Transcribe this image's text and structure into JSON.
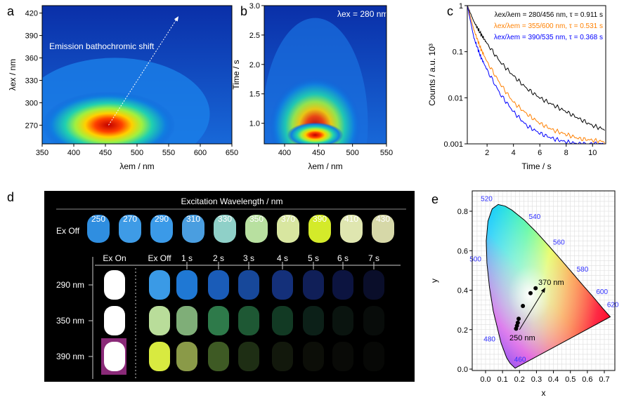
{
  "panel_letters": {
    "a": "a",
    "b": "b",
    "c": "c",
    "d": "d",
    "e": "e"
  },
  "chart_data": [
    {
      "panel": "a",
      "type": "heatmap",
      "xlabel": "λem / nm",
      "ylabel": "λex / nm",
      "xlim": [
        350,
        650
      ],
      "ylim": [
        245,
        430
      ],
      "xticks": [
        "350",
        "400",
        "450",
        "500",
        "550",
        "600",
        "650"
      ],
      "yticks": [
        "270",
        "300",
        "330",
        "360",
        "390",
        "420"
      ],
      "annotation": "Emission bathochromic shift",
      "peak": {
        "x": 455,
        "y": 270
      },
      "arrow": {
        "from": [
          455,
          270
        ],
        "to": [
          565,
          415
        ]
      }
    },
    {
      "panel": "b",
      "type": "heatmap",
      "xlabel": "λem / nm",
      "ylabel": "Time / s",
      "xlim": [
        370,
        550
      ],
      "ylim": [
        0.65,
        3.0
      ],
      "xticks": [
        "400",
        "450",
        "500",
        "550"
      ],
      "yticks": [
        "1.0",
        "1.5",
        "2.0",
        "2.5",
        "3.0"
      ],
      "annotation": "λex = 280 nm",
      "peak": {
        "x": 445,
        "y": 0.8
      }
    },
    {
      "panel": "c",
      "type": "line",
      "xlabel": "Time / s",
      "ylabel": "Counts / a.u. 10³",
      "xlim": [
        0.5,
        11
      ],
      "ylim": [
        0.001,
        1
      ],
      "yscale": "log",
      "xticks": [
        "2",
        "4",
        "6",
        "8",
        "10"
      ],
      "yticks": [
        "0.001",
        "0.01",
        "0.1",
        "1"
      ],
      "series": [
        {
          "name": "λex/λem = 280/456 nm, τ = 0.911 s",
          "color": "#000000",
          "x": [
            0.5,
            1,
            1.5,
            2,
            3,
            4,
            5,
            6,
            7,
            8,
            9,
            10,
            11
          ],
          "y": [
            1,
            0.45,
            0.25,
            0.15,
            0.06,
            0.03,
            0.016,
            0.01,
            0.007,
            0.005,
            0.0035,
            0.0025,
            0.002
          ]
        },
        {
          "name": "λex/λem = 355/600 nm, τ = 0.531 s",
          "color": "#ff8000",
          "x": [
            0.5,
            1,
            1.5,
            2,
            3,
            4,
            5,
            6,
            7,
            8,
            9,
            10,
            11
          ],
          "y": [
            1,
            0.3,
            0.12,
            0.06,
            0.02,
            0.008,
            0.0045,
            0.0028,
            0.002,
            0.0016,
            0.0013,
            0.0012,
            0.0011
          ]
        },
        {
          "name": "λex/λem = 390/535 nm, τ = 0.368 s",
          "color": "#0000ff",
          "x": [
            0.5,
            1,
            1.5,
            2,
            3,
            4,
            5,
            6,
            7,
            8,
            9,
            10,
            11
          ],
          "y": [
            1,
            0.2,
            0.08,
            0.04,
            0.012,
            0.005,
            0.0025,
            0.0017,
            0.0013,
            0.0011,
            0.001,
            0.001,
            0.001
          ]
        }
      ]
    },
    {
      "panel": "e",
      "type": "scatter",
      "xlabel": "x",
      "ylabel": "y",
      "xlim": [
        -0.1,
        0.75
      ],
      "ylim": [
        0,
        0.9
      ],
      "xticks": [
        "0.0",
        "0.1",
        "0.2",
        "0.3",
        "0.4",
        "0.5",
        "0.6",
        "0.7"
      ],
      "yticks": [
        "0.0",
        "0.2",
        "0.4",
        "0.6",
        "0.8"
      ],
      "locus_labels": [
        {
          "nm": "460",
          "x": 0.144,
          "y": 0.03
        },
        {
          "nm": "480",
          "x": 0.091,
          "y": 0.133
        },
        {
          "nm": "500",
          "x": 0.008,
          "y": 0.538
        },
        {
          "nm": "520",
          "x": 0.074,
          "y": 0.834
        },
        {
          "nm": "540",
          "x": 0.23,
          "y": 0.754
        },
        {
          "nm": "560",
          "x": 0.373,
          "y": 0.624
        },
        {
          "nm": "580",
          "x": 0.512,
          "y": 0.487
        },
        {
          "nm": "600",
          "x": 0.627,
          "y": 0.373
        },
        {
          "nm": "620",
          "x": 0.691,
          "y": 0.308
        }
      ],
      "points": {
        "x": [
          0.18,
          0.185,
          0.19,
          0.195,
          0.22,
          0.265,
          0.295
        ],
        "y": [
          0.205,
          0.22,
          0.235,
          0.255,
          0.32,
          0.385,
          0.41
        ]
      },
      "annotations": [
        "250 nm",
        "370 nm"
      ]
    }
  ],
  "photo": {
    "title": "Excitation Wavelength / nm",
    "row_label": "Ex Off",
    "wavelengths": [
      "250",
      "270",
      "290",
      "310",
      "330",
      "350",
      "370",
      "390",
      "410",
      "430"
    ],
    "vial_colors": [
      "#2f8ee0",
      "#3e9be6",
      "#3b9ae8",
      "#4a9ee0",
      "#8fd0c8",
      "#b8e0a0",
      "#d8e6a0",
      "#d4ea2a",
      "#dfe6b0",
      "#d6d8a8"
    ],
    "time_labels": [
      "Ex On",
      "Ex Off",
      "1 s",
      "2 s",
      "3 s",
      "4 s",
      "5 s",
      "6 s",
      "7 s"
    ],
    "rows": [
      {
        "label": "290 nm",
        "colors": [
          "#ffffff",
          "#3a9ae6",
          "#1f78d4",
          "#1a5cb8",
          "#17489a",
          "#14307a",
          "#101f58",
          "#0c1440",
          "#0a0e2a"
        ]
      },
      {
        "label": "350 nm",
        "colors": [
          "#ffffff",
          "#b9dd9a",
          "#7fae78",
          "#2e7a4a",
          "#1e5834",
          "#123a24",
          "#0c2018",
          "#0a140f",
          "#080c0a"
        ]
      },
      {
        "label": "390 nm",
        "colors": [
          "#ffffff",
          "#d8ea40",
          "#8a9a48",
          "#3e5a24",
          "#1e2e14",
          "#12180c",
          "#0c0e08",
          "#090a07",
          "#070806"
        ]
      }
    ]
  }
}
